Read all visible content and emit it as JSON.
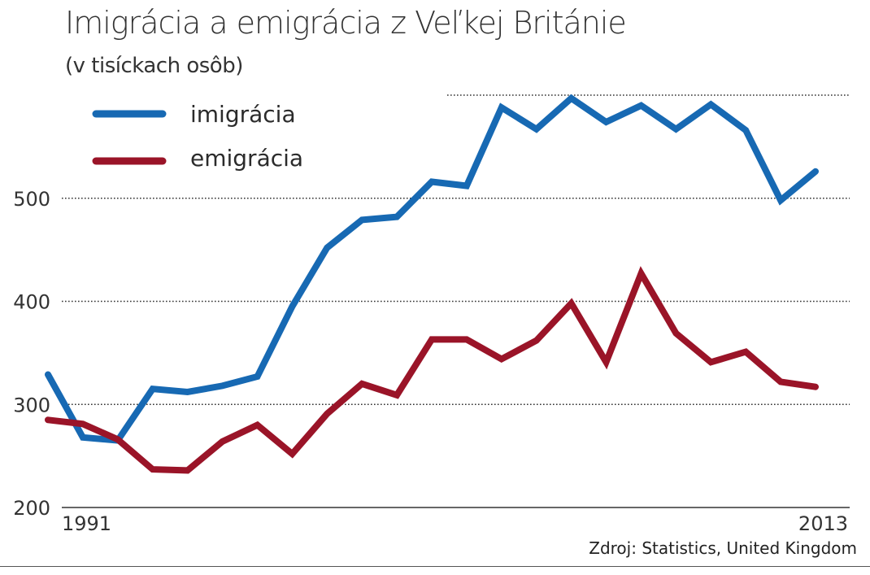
{
  "header": {
    "title": "Imigrácia a emigrácia z Veľkej Británie",
    "subtitle": "(v tisíckach osôb)"
  },
  "source": "Zdroj: Statistics, United Kingdom",
  "colors": {
    "imigracia": "#1769b3",
    "emigracia": "#9a1428",
    "grid": "#333333",
    "axis": "#333333"
  },
  "chart_data": {
    "type": "line",
    "title": "Imigrácia a emigrácia z Veľkej Británie",
    "subtitle": "(v tisíckach osôb)",
    "xlabel": "",
    "ylabel": "",
    "x": [
      1991,
      1992,
      1993,
      1994,
      1995,
      1996,
      1997,
      1998,
      1999,
      2000,
      2001,
      2002,
      2003,
      2004,
      2005,
      2006,
      2007,
      2008,
      2009,
      2010,
      2011,
      2012,
      2013
    ],
    "x_tick_labels": [
      "1991",
      "2013"
    ],
    "y_ticks": [
      200,
      300,
      400,
      500
    ],
    "y_tick_labels": [
      "200",
      "300",
      "400",
      "500"
    ],
    "ylim": [
      200,
      600
    ],
    "grid": true,
    "legend_position": "top-left",
    "series": [
      {
        "name": "imigrácia",
        "color": "#1769b3",
        "values": [
          329,
          268,
          265,
          315,
          312,
          318,
          327,
          395,
          452,
          479,
          482,
          516,
          512,
          588,
          567,
          597,
          574,
          590,
          567,
          591,
          566,
          498,
          526
        ]
      },
      {
        "name": "emigrácia",
        "color": "#9a1428",
        "values": [
          285,
          281,
          266,
          237,
          236,
          264,
          280,
          252,
          291,
          320,
          309,
          363,
          363,
          344,
          362,
          398,
          341,
          427,
          369,
          341,
          351,
          322,
          317
        ]
      }
    ]
  }
}
